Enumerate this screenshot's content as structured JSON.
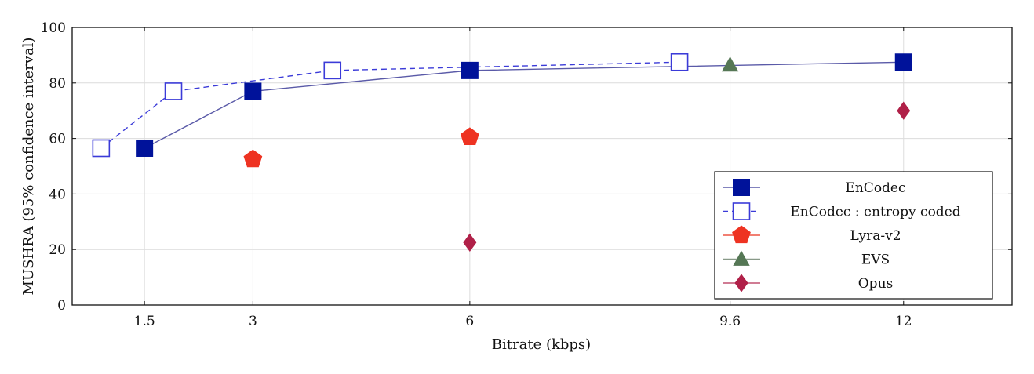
{
  "chart_data": {
    "type": "line",
    "xlabel": "Bitrate (kbps)",
    "ylabel": "MUSHRA (95% confidence interval)",
    "xlim": [
      0.5,
      13.5
    ],
    "ylim": [
      0,
      100
    ],
    "x_ticks": [
      {
        "value": 1.5,
        "label": "1.5"
      },
      {
        "value": 3,
        "label": "3"
      },
      {
        "value": 6,
        "label": "6"
      },
      {
        "value": 9.6,
        "label": "9.6"
      },
      {
        "value": 12,
        "label": "12"
      }
    ],
    "y_ticks": [
      {
        "value": 0,
        "label": "0"
      },
      {
        "value": 20,
        "label": "20"
      },
      {
        "value": 40,
        "label": "40"
      },
      {
        "value": 60,
        "label": "60"
      },
      {
        "value": 80,
        "label": "80"
      },
      {
        "value": 100,
        "label": "100"
      }
    ],
    "grid": true,
    "legend_position": "bottom-right",
    "series": [
      {
        "key": "encodec",
        "name": "EnCodec",
        "marker": "square-filled",
        "line": "solid",
        "color": "#00129a",
        "line_color": "#5a5aa8",
        "points": [
          [
            1.5,
            56.5
          ],
          [
            3,
            77
          ],
          [
            6,
            84.5
          ],
          [
            12,
            87.5
          ]
        ]
      },
      {
        "key": "encodec_entropy",
        "name": "EnCodec : entropy coded",
        "marker": "square-open",
        "line": "dashed",
        "color": "#3b3bd8",
        "line_color": "#3b3bd8",
        "points": [
          [
            0.9,
            56.5
          ],
          [
            1.9,
            77
          ],
          [
            4.1,
            84.5
          ],
          [
            8.9,
            87.5
          ]
        ]
      },
      {
        "key": "lyra",
        "name": "Lyra-v2",
        "marker": "pentagon",
        "line": "none",
        "color": "#ee3322",
        "line_color": "#ee5544",
        "points": [
          [
            3,
            52.5
          ],
          [
            6,
            60.5
          ]
        ]
      },
      {
        "key": "evs",
        "name": "EVS",
        "marker": "triangle",
        "line": "none",
        "color": "#557755",
        "line_color": "#889988",
        "points": [
          [
            9.6,
            86.5
          ]
        ]
      },
      {
        "key": "opus",
        "name": "Opus",
        "marker": "diamond",
        "line": "none",
        "color": "#b02048",
        "line_color": "#c05070",
        "points": [
          [
            6,
            22.5
          ],
          [
            12,
            70
          ]
        ]
      }
    ]
  }
}
